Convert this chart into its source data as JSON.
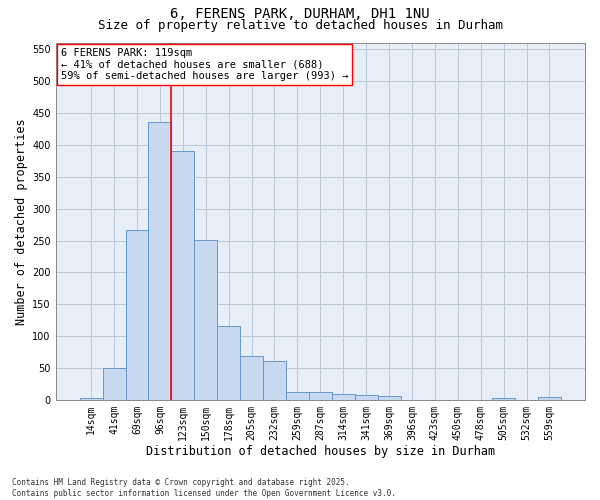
{
  "title_line1": "6, FERENS PARK, DURHAM, DH1 1NU",
  "title_line2": "Size of property relative to detached houses in Durham",
  "xlabel": "Distribution of detached houses by size in Durham",
  "ylabel": "Number of detached properties",
  "categories": [
    "14sqm",
    "41sqm",
    "69sqm",
    "96sqm",
    "123sqm",
    "150sqm",
    "178sqm",
    "205sqm",
    "232sqm",
    "259sqm",
    "287sqm",
    "314sqm",
    "341sqm",
    "369sqm",
    "396sqm",
    "423sqm",
    "450sqm",
    "478sqm",
    "505sqm",
    "532sqm",
    "559sqm"
  ],
  "values": [
    3,
    51,
    267,
    435,
    390,
    251,
    116,
    70,
    62,
    13,
    13,
    9,
    8,
    6,
    0,
    0,
    0,
    0,
    3,
    0,
    5
  ],
  "bar_color": "#c8d8ee",
  "bar_edge_color": "#6699cc",
  "vline_color": "red",
  "vline_x_index": 3.5,
  "annotation_text": "6 FERENS PARK: 119sqm\n← 41% of detached houses are smaller (688)\n59% of semi-detached houses are larger (993) →",
  "annotation_box_color": "white",
  "annotation_box_edge_color": "red",
  "ylim": [
    0,
    560
  ],
  "yticks": [
    0,
    50,
    100,
    150,
    200,
    250,
    300,
    350,
    400,
    450,
    500,
    550
  ],
  "grid_color": "#b8c8dc",
  "background_color": "#e8eef8",
  "footnote": "Contains HM Land Registry data © Crown copyright and database right 2025.\nContains public sector information licensed under the Open Government Licence v3.0.",
  "title_fontsize": 10,
  "subtitle_fontsize": 9,
  "tick_fontsize": 7,
  "xlabel_fontsize": 8.5,
  "ylabel_fontsize": 8.5,
  "annot_fontsize": 7.5,
  "footnote_fontsize": 5.5
}
